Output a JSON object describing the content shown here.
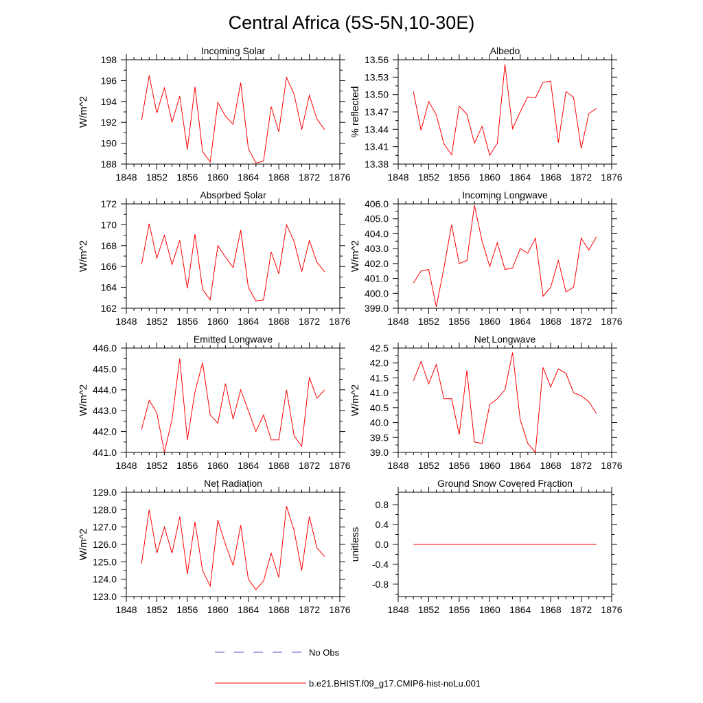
{
  "figure": {
    "title": "Central Africa (5S-5N,10-30E)",
    "line_color": "#ff0000",
    "obs_color": "#5555cc"
  },
  "legend": {
    "entries": [
      {
        "label": "No Obs",
        "style": "dashed",
        "color": "#5555cc"
      },
      {
        "label": "b.e21.BHIST.f09_g17.CMIP6-hist-noLu.001",
        "style": "solid",
        "color": "#ff0000"
      }
    ]
  },
  "chart_data": [
    {
      "type": "line",
      "title": "Incoming Solar",
      "ylabel": "W/m^2",
      "xlim": [
        1848,
        1876
      ],
      "ylim": [
        188,
        198
      ],
      "xticks": [
        1848,
        1852,
        1856,
        1860,
        1864,
        1868,
        1872,
        1876
      ],
      "xtick_labels": [
        "1848",
        "1852",
        "1856",
        "1860",
        "1864",
        "1868",
        "1872",
        "1876"
      ],
      "yticks": [
        188,
        190,
        192,
        194,
        196,
        198
      ],
      "ytick_labels": [
        "188",
        "190",
        "192",
        "194",
        "196",
        "198"
      ],
      "x": [
        1850,
        1851,
        1852,
        1853,
        1854,
        1855,
        1856,
        1857,
        1858,
        1859,
        1860,
        1861,
        1862,
        1863,
        1864,
        1865,
        1866,
        1867,
        1868,
        1869,
        1870,
        1871,
        1872,
        1873,
        1874
      ],
      "series": [
        {
          "name": "b.e21.BHIST.f09_g17.CMIP6-hist-noLu.001",
          "values": [
            192.2,
            196.5,
            192.9,
            195.3,
            192.0,
            194.5,
            189.4,
            195.4,
            189.2,
            188.2,
            193.9,
            192.6,
            191.8,
            195.8,
            189.5,
            188.1,
            188.3,
            193.5,
            191.1,
            196.3,
            194.7,
            191.3,
            194.6,
            192.3,
            191.3
          ]
        }
      ]
    },
    {
      "type": "line",
      "title": "Albedo",
      "ylabel": "% reflected",
      "xlim": [
        1848,
        1876
      ],
      "ylim": [
        13.38,
        13.56
      ],
      "xticks": [
        1848,
        1852,
        1856,
        1860,
        1864,
        1868,
        1872,
        1876
      ],
      "xtick_labels": [
        "1848",
        "1852",
        "1856",
        "1860",
        "1864",
        "1868",
        "1872",
        "1876"
      ],
      "yticks": [
        13.38,
        13.41,
        13.44,
        13.47,
        13.5,
        13.53,
        13.56
      ],
      "ytick_labels": [
        "13.38",
        "13.41",
        "13.44",
        "13.47",
        "13.50",
        "13.53",
        "13.56"
      ],
      "x": [
        1850,
        1851,
        1852,
        1853,
        1854,
        1855,
        1856,
        1857,
        1858,
        1859,
        1860,
        1861,
        1862,
        1863,
        1864,
        1865,
        1866,
        1867,
        1868,
        1869,
        1870,
        1871,
        1872,
        1873,
        1874
      ],
      "series": [
        {
          "name": "b.e21.BHIST.f09_g17.CMIP6-hist-noLu.001",
          "values": [
            13.505,
            13.438,
            13.488,
            13.465,
            13.415,
            13.396,
            13.48,
            13.466,
            13.416,
            13.445,
            13.395,
            13.416,
            13.552,
            13.441,
            13.47,
            13.496,
            13.494,
            13.521,
            13.523,
            13.417,
            13.505,
            13.495,
            13.407,
            13.467,
            13.476
          ]
        }
      ]
    },
    {
      "type": "line",
      "title": "Absorbed Solar",
      "ylabel": "W/m^2",
      "xlim": [
        1848,
        1876
      ],
      "ylim": [
        162,
        172
      ],
      "xticks": [
        1848,
        1852,
        1856,
        1860,
        1864,
        1868,
        1872,
        1876
      ],
      "xtick_labels": [
        "1848",
        "1852",
        "1856",
        "1860",
        "1864",
        "1868",
        "1872",
        "1876"
      ],
      "yticks": [
        162,
        164,
        166,
        168,
        170,
        172
      ],
      "ytick_labels": [
        "162",
        "164",
        "166",
        "168",
        "170",
        "172"
      ],
      "x": [
        1850,
        1851,
        1852,
        1853,
        1854,
        1855,
        1856,
        1857,
        1858,
        1859,
        1860,
        1861,
        1862,
        1863,
        1864,
        1865,
        1866,
        1867,
        1868,
        1869,
        1870,
        1871,
        1872,
        1873,
        1874
      ],
      "series": [
        {
          "name": "b.e21.BHIST.f09_g17.CMIP6-hist-noLu.001",
          "values": [
            166.2,
            170.1,
            166.8,
            169.0,
            166.2,
            168.5,
            163.9,
            169.1,
            163.8,
            162.8,
            168.0,
            166.9,
            165.9,
            169.5,
            164.0,
            162.7,
            162.8,
            167.4,
            165.3,
            170.0,
            168.4,
            165.5,
            168.5,
            166.4,
            165.5
          ]
        }
      ]
    },
    {
      "type": "line",
      "title": "Incoming Longwave",
      "ylabel": "W/m^2",
      "xlim": [
        1848,
        1876
      ],
      "ylim": [
        399.0,
        406.0
      ],
      "xticks": [
        1848,
        1852,
        1856,
        1860,
        1864,
        1868,
        1872,
        1876
      ],
      "xtick_labels": [
        "1848",
        "1852",
        "1856",
        "1860",
        "1864",
        "1868",
        "1872",
        "1876"
      ],
      "yticks": [
        399,
        400,
        401,
        402,
        403,
        404,
        405,
        406
      ],
      "ytick_labels": [
        "399.0",
        "400.0",
        "401.0",
        "402.0",
        "403.0",
        "404.0",
        "405.0",
        "406.0"
      ],
      "x": [
        1850,
        1851,
        1852,
        1853,
        1854,
        1855,
        1856,
        1857,
        1858,
        1859,
        1860,
        1861,
        1862,
        1863,
        1864,
        1865,
        1866,
        1867,
        1868,
        1869,
        1870,
        1871,
        1872,
        1873,
        1874
      ],
      "series": [
        {
          "name": "b.e21.BHIST.f09_g17.CMIP6-hist-noLu.001",
          "values": [
            400.7,
            401.5,
            401.6,
            399.1,
            401.7,
            404.6,
            402.0,
            402.2,
            405.9,
            403.5,
            401.8,
            403.4,
            401.6,
            401.7,
            403.0,
            402.7,
            403.7,
            399.8,
            400.4,
            402.2,
            400.1,
            400.4,
            403.7,
            402.9,
            403.8
          ]
        }
      ]
    },
    {
      "type": "line",
      "title": "Emitted Longwave",
      "ylabel": "W/m^2",
      "xlim": [
        1848,
        1876
      ],
      "ylim": [
        441.0,
        446.0
      ],
      "xticks": [
        1848,
        1852,
        1856,
        1860,
        1864,
        1868,
        1872,
        1876
      ],
      "xtick_labels": [
        "1848",
        "1852",
        "1856",
        "1860",
        "1864",
        "1868",
        "1872",
        "1876"
      ],
      "yticks": [
        441,
        442,
        443,
        444,
        445,
        446
      ],
      "ytick_labels": [
        "441.0",
        "442.0",
        "443.0",
        "444.0",
        "445.0",
        "446.0"
      ],
      "x": [
        1850,
        1851,
        1852,
        1853,
        1854,
        1855,
        1856,
        1857,
        1858,
        1859,
        1860,
        1861,
        1862,
        1863,
        1864,
        1865,
        1866,
        1867,
        1868,
        1869,
        1870,
        1871,
        1872,
        1873,
        1874
      ],
      "series": [
        {
          "name": "b.e21.BHIST.f09_g17.CMIP6-hist-noLu.001",
          "values": [
            442.1,
            443.5,
            442.9,
            441.0,
            442.6,
            445.5,
            441.6,
            443.9,
            445.3,
            442.8,
            442.4,
            444.3,
            442.6,
            444.0,
            443.0,
            442.0,
            442.8,
            441.6,
            441.6,
            444.0,
            441.8,
            441.3,
            444.6,
            443.6,
            444.0
          ]
        }
      ]
    },
    {
      "type": "line",
      "title": "Net Longwave",
      "ylabel": "W/m^2",
      "xlim": [
        1848,
        1876
      ],
      "ylim": [
        39.0,
        42.5
      ],
      "xticks": [
        1848,
        1852,
        1856,
        1860,
        1864,
        1868,
        1872,
        1876
      ],
      "xtick_labels": [
        "1848",
        "1852",
        "1856",
        "1860",
        "1864",
        "1868",
        "1872",
        "1876"
      ],
      "yticks": [
        39.0,
        39.5,
        40.0,
        40.5,
        41.0,
        41.5,
        42.0,
        42.5
      ],
      "ytick_labels": [
        "39.0",
        "39.5",
        "40.0",
        "40.5",
        "41.0",
        "41.5",
        "42.0",
        "42.5"
      ],
      "x": [
        1850,
        1851,
        1852,
        1853,
        1854,
        1855,
        1856,
        1857,
        1858,
        1859,
        1860,
        1861,
        1862,
        1863,
        1864,
        1865,
        1866,
        1867,
        1868,
        1869,
        1870,
        1871,
        1872,
        1873,
        1874
      ],
      "series": [
        {
          "name": "b.e21.BHIST.f09_g17.CMIP6-hist-noLu.001",
          "values": [
            41.4,
            42.05,
            41.3,
            41.95,
            40.8,
            40.8,
            39.6,
            41.75,
            39.35,
            39.3,
            40.6,
            40.8,
            41.1,
            42.35,
            40.1,
            39.3,
            39.0,
            41.85,
            41.2,
            41.8,
            41.65,
            41.0,
            40.9,
            40.7,
            40.3
          ]
        }
      ]
    },
    {
      "type": "line",
      "title": "Net Radiation",
      "ylabel": "W/m^2",
      "xlim": [
        1848,
        1876
      ],
      "ylim": [
        123.0,
        129.0
      ],
      "xticks": [
        1848,
        1852,
        1856,
        1860,
        1864,
        1868,
        1872,
        1876
      ],
      "xtick_labels": [
        "1848",
        "1852",
        "1856",
        "1860",
        "1864",
        "1868",
        "1872",
        "1876"
      ],
      "yticks": [
        123,
        124,
        125,
        126,
        127,
        128,
        129
      ],
      "ytick_labels": [
        "123.0",
        "124.0",
        "125.0",
        "126.0",
        "127.0",
        "128.0",
        "129.0"
      ],
      "x": [
        1850,
        1851,
        1852,
        1853,
        1854,
        1855,
        1856,
        1857,
        1858,
        1859,
        1860,
        1861,
        1862,
        1863,
        1864,
        1865,
        1866,
        1867,
        1868,
        1869,
        1870,
        1871,
        1872,
        1873,
        1874
      ],
      "series": [
        {
          "name": "b.e21.BHIST.f09_g17.CMIP6-hist-noLu.001",
          "values": [
            124.9,
            128.0,
            125.5,
            127.0,
            125.5,
            127.6,
            124.3,
            127.3,
            124.5,
            123.6,
            127.4,
            126.0,
            124.8,
            127.1,
            124.0,
            123.4,
            123.9,
            125.5,
            124.1,
            128.2,
            126.8,
            124.5,
            127.6,
            125.8,
            125.3
          ]
        }
      ]
    },
    {
      "type": "line",
      "title": "Ground Snow Covered Fraction",
      "ylabel": "unitless",
      "xlim": [
        1848,
        1876
      ],
      "ylim": [
        -1.05,
        1.05
      ],
      "xticks": [
        1848,
        1852,
        1856,
        1860,
        1864,
        1868,
        1872,
        1876
      ],
      "xtick_labels": [
        "1848",
        "1852",
        "1856",
        "1860",
        "1864",
        "1868",
        "1872",
        "1876"
      ],
      "yticks": [
        -0.8,
        -0.4,
        0.0,
        0.4,
        0.8
      ],
      "ytick_labels": [
        "-0.8",
        "-0.4",
        "0.0",
        "0.4",
        "0.8"
      ],
      "x": [
        1850,
        1851,
        1852,
        1853,
        1854,
        1855,
        1856,
        1857,
        1858,
        1859,
        1860,
        1861,
        1862,
        1863,
        1864,
        1865,
        1866,
        1867,
        1868,
        1869,
        1870,
        1871,
        1872,
        1873,
        1874
      ],
      "series": [
        {
          "name": "b.e21.BHIST.f09_g17.CMIP6-hist-noLu.001",
          "values": [
            0,
            0,
            0,
            0,
            0,
            0,
            0,
            0,
            0,
            0,
            0,
            0,
            0,
            0,
            0,
            0,
            0,
            0,
            0,
            0,
            0,
            0,
            0,
            0,
            0
          ]
        }
      ]
    }
  ]
}
